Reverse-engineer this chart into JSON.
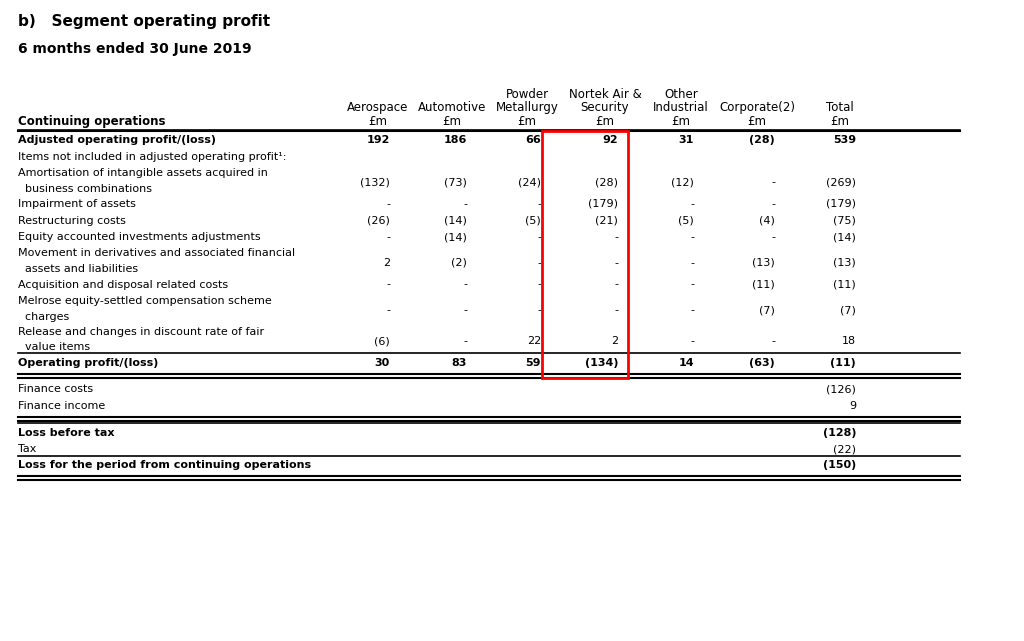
{
  "title_b": "b)   Segment operating profit",
  "subtitle": "6 months ended 30 June 2019",
  "bg_color": "#ffffff",
  "header_names": [
    "Aerospace",
    "Automotive",
    "Powder\nMetallurgy",
    "Nortek Air &\nSecurity",
    "Other\nIndustrial",
    "Corporate(2)",
    "Total"
  ],
  "header_units": [
    "£m",
    "£m",
    "£m",
    "£m",
    "£m",
    "£m",
    "£m"
  ],
  "col_label": "Continuing operations",
  "highlight_col_idx": 3,
  "rows": [
    {
      "label": "Adjusted operating profit/(loss)",
      "values": [
        "192",
        "186",
        "66",
        "92",
        "31",
        "(28)",
        "539"
      ],
      "bold": true,
      "top_border": true,
      "bottom_border": false,
      "multiline": false
    },
    {
      "label": "Items not included in adjusted operating profit¹:",
      "values": [
        "",
        "",
        "",
        "",
        "",
        "",
        ""
      ],
      "bold": false,
      "top_border": false,
      "bottom_border": false,
      "multiline": false
    },
    {
      "label": "Amortisation of intangible assets acquired in",
      "label2": "  business combinations",
      "values": [
        "(132)",
        "(73)",
        "(24)",
        "(28)",
        "(12)",
        "-",
        "(269)"
      ],
      "bold": false,
      "top_border": false,
      "bottom_border": false,
      "multiline": true
    },
    {
      "label": "Impairment of assets",
      "values": [
        "-",
        "-",
        "-",
        "(179)",
        "-",
        "-",
        "(179)"
      ],
      "bold": false,
      "top_border": false,
      "bottom_border": false,
      "multiline": false
    },
    {
      "label": "Restructuring costs",
      "values": [
        "(26)",
        "(14)",
        "(5)",
        "(21)",
        "(5)",
        "(4)",
        "(75)"
      ],
      "bold": false,
      "top_border": false,
      "bottom_border": false,
      "multiline": false
    },
    {
      "label": "Equity accounted investments adjustments",
      "values": [
        "-",
        "(14)",
        "-",
        "-",
        "-",
        "-",
        "(14)"
      ],
      "bold": false,
      "top_border": false,
      "bottom_border": false,
      "multiline": false
    },
    {
      "label": "Movement in derivatives and associated financial",
      "label2": "  assets and liabilities",
      "values": [
        "2",
        "(2)",
        "-",
        "-",
        "-",
        "(13)",
        "(13)"
      ],
      "bold": false,
      "top_border": false,
      "bottom_border": false,
      "multiline": true
    },
    {
      "label": "Acquisition and disposal related costs",
      "values": [
        "-",
        "-",
        "-",
        "-",
        "-",
        "(11)",
        "(11)"
      ],
      "bold": false,
      "top_border": false,
      "bottom_border": false,
      "multiline": false
    },
    {
      "label": "Melrose equity-settled compensation scheme",
      "label2": "  charges",
      "values": [
        "-",
        "-",
        "-",
        "-",
        "-",
        "(7)",
        "(7)"
      ],
      "bold": false,
      "top_border": false,
      "bottom_border": false,
      "multiline": true
    },
    {
      "label": "Release and changes in discount rate of fair",
      "label2": "  value items",
      "values": [
        "(6)",
        "-",
        "22",
        "2",
        "-",
        "-",
        "18"
      ],
      "bold": false,
      "top_border": false,
      "bottom_border": false,
      "multiline": true
    },
    {
      "label": "Operating profit/(loss)",
      "values": [
        "30",
        "83",
        "59",
        "(134)",
        "14",
        "(63)",
        "(11)"
      ],
      "bold": true,
      "top_border": true,
      "bottom_border": true,
      "multiline": false
    },
    {
      "label": "Finance costs",
      "values": [
        "",
        "",
        "",
        "",
        "",
        "",
        "(126)"
      ],
      "bold": false,
      "top_border": false,
      "bottom_border": false,
      "multiline": false
    },
    {
      "label": "Finance income",
      "values": [
        "",
        "",
        "",
        "",
        "",
        "",
        "9"
      ],
      "bold": false,
      "top_border": false,
      "bottom_border": false,
      "multiline": false
    },
    {
      "label": "Loss before tax",
      "values": [
        "",
        "",
        "",
        "",
        "",
        "",
        "(128)"
      ],
      "bold": true,
      "top_border": true,
      "bottom_border": false,
      "multiline": false
    },
    {
      "label": "Tax",
      "values": [
        "",
        "",
        "",
        "",
        "",
        "",
        "(22)"
      ],
      "bold": false,
      "top_border": false,
      "bottom_border": false,
      "multiline": false
    },
    {
      "label": "Loss for the period from continuing operations",
      "values": [
        "",
        "",
        "",
        "",
        "",
        "",
        "(150)"
      ],
      "bold": true,
      "top_border": true,
      "bottom_border": true,
      "multiline": false
    }
  ]
}
